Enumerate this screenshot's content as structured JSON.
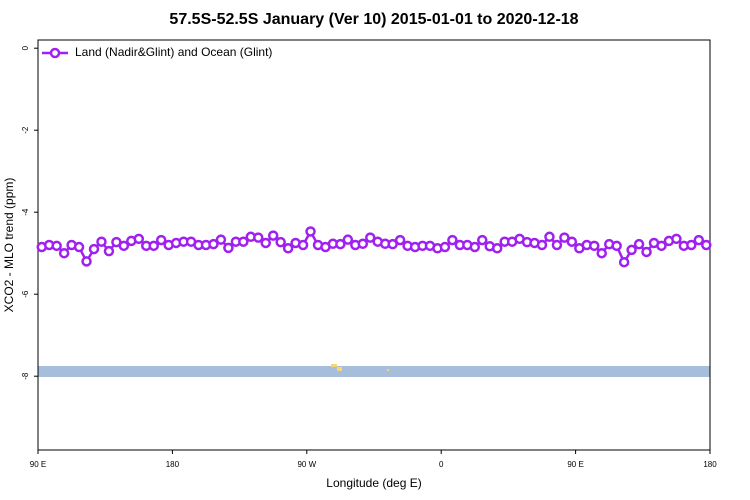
{
  "chart_data": {
    "type": "line",
    "title": "57.5S-52.5S January (Ver 10)   2015-01-01 to 2020-12-18",
    "x_label": "Longitude (deg E)",
    "y_label": "XCO2 - MLO trend (ppm)",
    "legend_position": "topleft",
    "xlim": [
      90,
      540
    ],
    "xticks": [
      {
        "value": 90,
        "label": "90 E"
      },
      180,
      {
        "value": 270,
        "label": "90 W"
      },
      {
        "value": 360,
        "label": "0"
      },
      {
        "value": 450,
        "label": "90 E"
      },
      {
        "value": 540,
        "label": "180"
      }
    ],
    "ylim": [
      -9.8,
      0.2
    ],
    "yticks": [
      0,
      -2,
      -4,
      -6,
      -8
    ],
    "x": [
      92.5,
      97.5,
      102.5,
      107.5,
      112.5,
      117.5,
      122.5,
      127.5,
      132.5,
      137.5,
      142.5,
      147.5,
      152.5,
      157.5,
      162.5,
      167.5,
      172.5,
      177.5,
      182.5,
      187.5,
      192.5,
      197.5,
      202.5,
      207.5,
      212.5,
      217.5,
      222.5,
      227.5,
      232.5,
      237.5,
      242.5,
      247.5,
      252.5,
      257.5,
      262.5,
      267.5,
      272.5,
      277.5,
      282.5,
      287.5,
      292.5,
      297.5,
      302.5,
      307.5,
      312.5,
      317.5,
      322.5,
      327.5,
      332.5,
      337.5,
      342.5,
      347.5,
      352.5,
      357.5,
      362.5,
      367.5,
      372.5,
      377.5,
      382.5,
      387.5,
      392.5,
      397.5,
      402.5,
      407.5,
      412.5,
      417.5,
      422.5,
      427.5,
      432.5,
      437.5,
      442.5,
      447.5,
      452.5,
      457.5,
      462.5,
      467.5,
      472.5,
      477.5,
      482.5,
      487.5,
      492.5,
      497.5,
      502.5,
      507.5,
      512.5,
      517.5,
      522.5,
      527.5,
      532.5,
      537.5
    ],
    "series": [
      {
        "name": "Land (Nadir&Glint) and Ocean (Glint)",
        "color": "#a020f0",
        "values": [
          -4.85,
          -4.8,
          -4.82,
          -5.0,
          -4.8,
          -4.85,
          -5.2,
          -4.9,
          -4.72,
          -4.95,
          -4.73,
          -4.82,
          -4.7,
          -4.65,
          -4.82,
          -4.82,
          -4.68,
          -4.8,
          -4.75,
          -4.72,
          -4.72,
          -4.8,
          -4.8,
          -4.78,
          -4.67,
          -4.87,
          -4.72,
          -4.72,
          -4.6,
          -4.62,
          -4.75,
          -4.57,
          -4.73,
          -4.88,
          -4.75,
          -4.8,
          -4.47,
          -4.8,
          -4.85,
          -4.77,
          -4.78,
          -4.67,
          -4.8,
          -4.77,
          -4.62,
          -4.72,
          -4.77,
          -4.78,
          -4.68,
          -4.82,
          -4.85,
          -4.82,
          -4.82,
          -4.88,
          -4.85,
          -4.68,
          -4.8,
          -4.8,
          -4.85,
          -4.68,
          -4.83,
          -4.88,
          -4.72,
          -4.72,
          -4.65,
          -4.73,
          -4.75,
          -4.8,
          -4.6,
          -4.8,
          -4.62,
          -4.72,
          -4.88,
          -4.8,
          -4.82,
          -5.0,
          -4.78,
          -4.82,
          -5.22,
          -4.92,
          -4.78,
          -4.97,
          -4.75,
          -4.82,
          -4.7,
          -4.65,
          -4.82,
          -4.8,
          -4.68,
          -4.8
        ]
      }
    ]
  }
}
